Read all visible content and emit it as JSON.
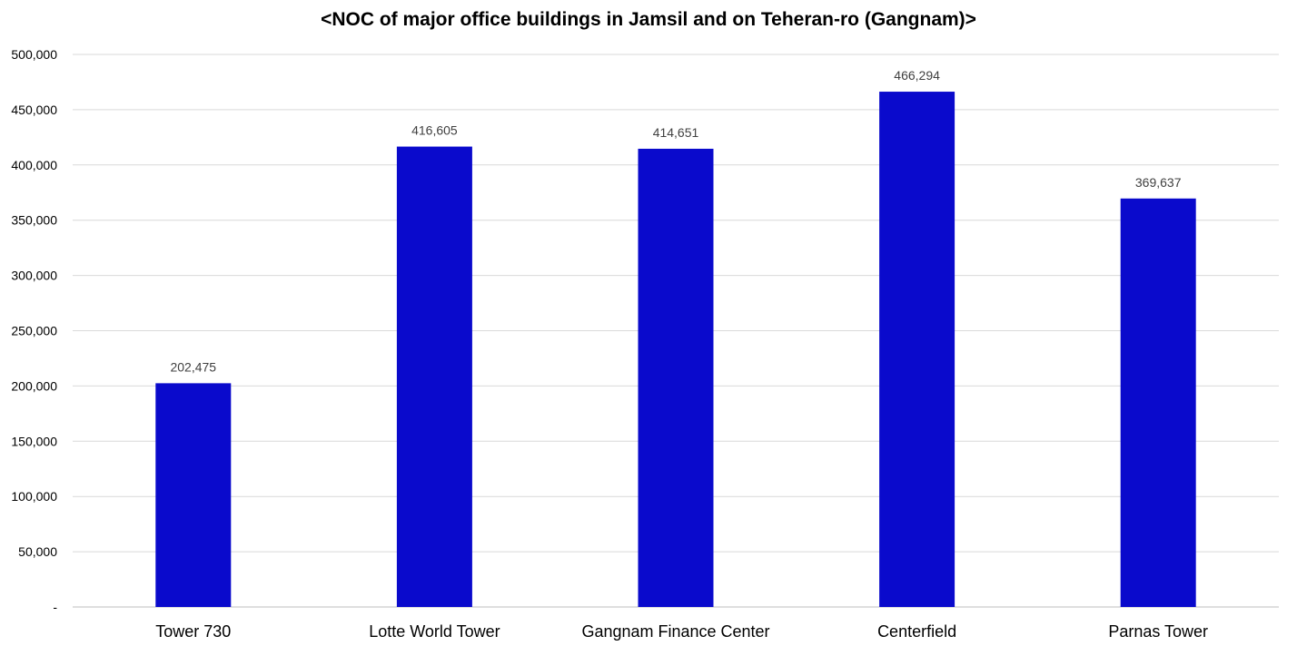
{
  "chart_data": {
    "type": "bar",
    "title": "<NOC of major office buildings in Jamsil and on Teheran-ro (Gangnam)>",
    "xlabel": "",
    "ylabel": "",
    "categories": [
      "Tower 730",
      "Lotte World Tower",
      "Gangnam Finance Center",
      "Centerfield",
      "Parnas Tower"
    ],
    "values": [
      202475,
      416605,
      414651,
      466294,
      369637
    ],
    "data_labels": [
      "202,475",
      "416,605",
      "414,651",
      "466,294",
      "369,637"
    ],
    "ylim": [
      0,
      500000
    ],
    "yticks": [
      0,
      50000,
      100000,
      150000,
      200000,
      250000,
      300000,
      350000,
      400000,
      450000,
      500000
    ],
    "ytick_labels": [
      "-",
      "50,000",
      "100,000",
      "150,000",
      "200,000",
      "250,000",
      "300,000",
      "350,000",
      "400,000",
      "450,000",
      "500,000"
    ],
    "grid": true,
    "legend": "none",
    "colors": {
      "bar": "#0A0ACC",
      "grid": "#D9D9D9",
      "axis": "#BFBFBF",
      "tick_text": "#000000",
      "label_text": "#404040"
    }
  }
}
